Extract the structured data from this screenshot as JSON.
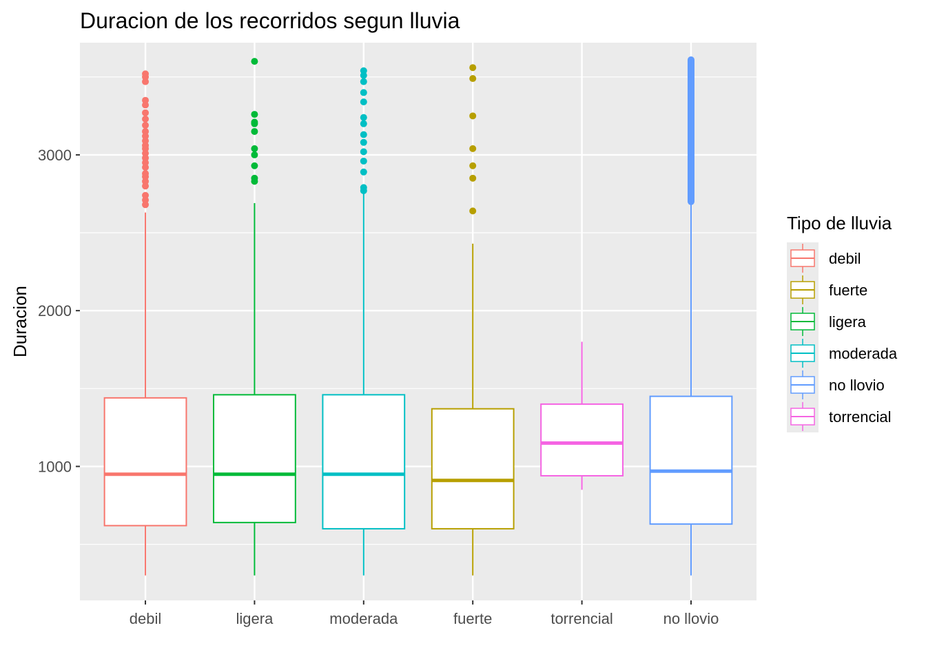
{
  "chart_data": {
    "type": "box",
    "title": "Duracion de los recorridos segun lluvia",
    "xlabel": "",
    "ylabel": "Duracion",
    "ylim": [
      140,
      3720
    ],
    "y_ticks": [
      1000,
      2000,
      3000
    ],
    "grid": true,
    "legend": {
      "title": "Tipo de lluvia",
      "position": "right",
      "entries": [
        "debil",
        "fuerte",
        "ligera",
        "moderada",
        "no llovio",
        "torrencial"
      ]
    },
    "categories": [
      "debil",
      "ligera",
      "moderada",
      "fuerte",
      "torrencial",
      "no llovio"
    ],
    "boxes": [
      {
        "category": "debil",
        "color": "#F8766D",
        "whisker_low": 300,
        "q1": 620,
        "median": 950,
        "q3": 1440,
        "whisker_high": 2630,
        "outliers": [
          2680,
          2710,
          2740,
          2800,
          2830,
          2860,
          2880,
          2920,
          2950,
          2980,
          3010,
          3040,
          3060,
          3090,
          3120,
          3150,
          3190,
          3230,
          3270,
          3320,
          3350,
          3470,
          3500,
          3520
        ]
      },
      {
        "category": "ligera",
        "color": "#00BA38",
        "whisker_low": 300,
        "q1": 640,
        "median": 950,
        "q3": 1460,
        "whisker_high": 2690,
        "outliers": [
          2830,
          2850,
          2930,
          3000,
          3040,
          3150,
          3200,
          3210,
          3260,
          3600
        ]
      },
      {
        "category": "moderada",
        "color": "#00BFC4",
        "whisker_low": 300,
        "q1": 600,
        "median": 950,
        "q3": 1460,
        "whisker_high": 2750,
        "outliers": [
          2770,
          2790,
          2890,
          2960,
          3020,
          3080,
          3130,
          3200,
          3240,
          3340,
          3400,
          3470,
          3510,
          3540
        ]
      },
      {
        "category": "fuerte",
        "color": "#B79F00",
        "whisker_low": 300,
        "q1": 600,
        "median": 910,
        "q3": 1370,
        "whisker_high": 2430,
        "outliers": [
          2640,
          2850,
          2930,
          3040,
          3250,
          3490,
          3560
        ]
      },
      {
        "category": "torrencial",
        "color": "#F564E3",
        "whisker_low": 850,
        "q1": 940,
        "median": 1150,
        "q3": 1400,
        "whisker_high": 1800,
        "outliers": []
      },
      {
        "category": "no llovio",
        "color": "#619CFF",
        "whisker_low": 300,
        "q1": 630,
        "median": 970,
        "q3": 1450,
        "whisker_high": 2690,
        "outliers": [],
        "outlier_band": [
          2700,
          3610
        ]
      }
    ]
  }
}
